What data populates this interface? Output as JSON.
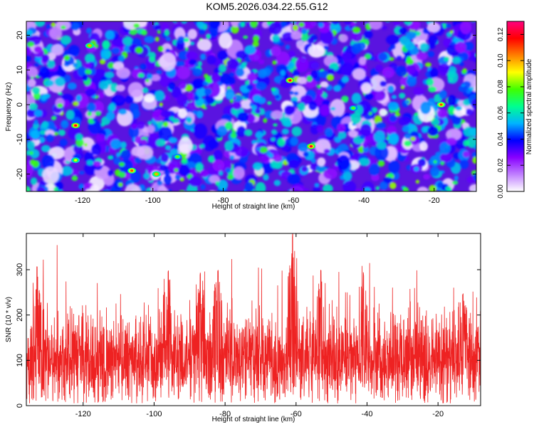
{
  "title": "KOM5.2026.034.22.55.G12",
  "chart_data": [
    {
      "type": "heatmap",
      "xlabel": "Height of straight line (km)",
      "ylabel": "Frequency (Hz)",
      "xlim": [
        -136,
        -8
      ],
      "ylim": [
        -25,
        24
      ],
      "xticks": [
        -120,
        -100,
        -80,
        -60,
        -40,
        -20
      ],
      "yticks": [
        -20,
        -10,
        0,
        10,
        20
      ],
      "colorbar": {
        "label": "Normalized spectral amplitude",
        "range": [
          0.0,
          0.13
        ],
        "ticks": [
          "0.00",
          "0.02",
          "0.04",
          "0.06",
          "0.08",
          "0.10",
          "0.12"
        ],
        "colors": [
          "#ffffff",
          "#c080ff",
          "#8800ff",
          "#0000ff",
          "#00b4ff",
          "#00ff90",
          "#40ff00",
          "#ffff00",
          "#ff8000",
          "#ff0000",
          "#ff0080"
        ]
      },
      "hot_spots": [
        {
          "x": -61,
          "y": 7,
          "value": 0.12
        },
        {
          "x": -55,
          "y": -12,
          "value": 0.12
        },
        {
          "x": -122,
          "y": -6,
          "value": 0.12
        },
        {
          "x": -18,
          "y": 0,
          "value": 0.11
        },
        {
          "x": -106,
          "y": -19,
          "value": 0.11
        },
        {
          "x": -99,
          "y": -20,
          "value": 0.1
        },
        {
          "x": -118,
          "y": 17,
          "value": 0.1
        },
        {
          "x": -122,
          "y": -16,
          "value": 0.09
        },
        {
          "x": -93,
          "y": -15,
          "value": 0.08
        },
        {
          "x": -43,
          "y": -1,
          "value": 0.08
        }
      ]
    },
    {
      "type": "line",
      "xlabel": "Height of straight line (km)",
      "ylabel": "SNR (10 * v/v)",
      "xlim": [
        -136,
        -8
      ],
      "ylim": [
        0,
        380
      ],
      "xticks": [
        -120,
        -100,
        -80,
        -60,
        -40,
        -20
      ],
      "yticks": [
        0,
        100,
        200,
        300
      ],
      "series": [
        {
          "color": "#ee2222",
          "baseline": 100,
          "typical_range": [
            20,
            220
          ],
          "peaks": [
            {
              "x": -61,
              "y": 380
            },
            {
              "x": -133,
              "y": 310
            },
            {
              "x": -87,
              "y": 295
            },
            {
              "x": -96,
              "y": 300
            },
            {
              "x": -82,
              "y": 300
            },
            {
              "x": -53,
              "y": 300
            },
            {
              "x": -41,
              "y": 295
            },
            {
              "x": -13,
              "y": 250
            }
          ]
        }
      ]
    }
  ]
}
